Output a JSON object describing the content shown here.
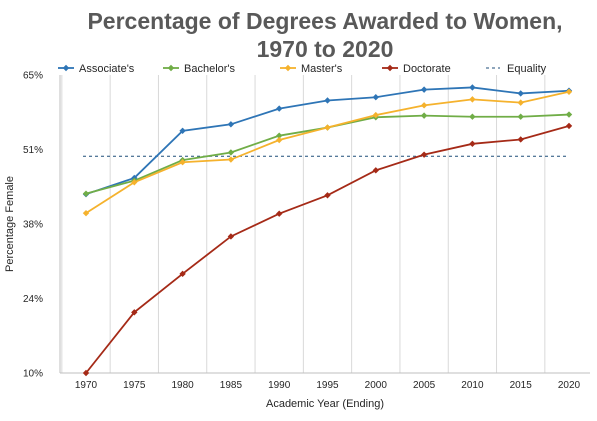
{
  "chart_data": {
    "type": "line",
    "title_line1": "Percentage of Degrees Awarded to Women,",
    "title_line2": "1970 to 2020",
    "xlabel": "Academic Year (Ending)",
    "ylabel": "Percentage Female",
    "categories": [
      "1970",
      "1975",
      "1980",
      "1985",
      "1990",
      "1995",
      "2000",
      "2005",
      "2010",
      "2015",
      "2020"
    ],
    "y_ticks": [
      "65%",
      "51%",
      "38%",
      "24%",
      "10%"
    ],
    "y_tick_values": [
      65,
      51.25,
      37.5,
      23.75,
      10
    ],
    "ylim": [
      10,
      65
    ],
    "grid": "vertical",
    "legend_position": "top",
    "series": [
      {
        "name": "Associate's",
        "color": "#2E75B6",
        "values": [
          43.0,
          46.0,
          54.7,
          55.9,
          58.8,
          60.3,
          60.9,
          62.3,
          62.7,
          61.6,
          62.1
        ]
      },
      {
        "name": "Bachelor's",
        "color": "#70AD47",
        "values": [
          43.1,
          45.5,
          49.3,
          50.7,
          53.8,
          55.3,
          57.2,
          57.5,
          57.3,
          57.3,
          57.7
        ]
      },
      {
        "name": "Master's",
        "color": "#F5B22D",
        "values": [
          39.5,
          45.2,
          48.9,
          49.4,
          53.0,
          55.3,
          57.6,
          59.4,
          60.5,
          59.9,
          61.9
        ]
      },
      {
        "name": "Doctorate",
        "color": "#A52A17",
        "values": [
          10.0,
          21.2,
          28.3,
          35.2,
          39.4,
          42.8,
          47.4,
          50.3,
          52.3,
          53.1,
          55.6
        ]
      }
    ],
    "reference_line": {
      "name": "Equality",
      "value": 50,
      "color": "#1F4E79"
    }
  }
}
